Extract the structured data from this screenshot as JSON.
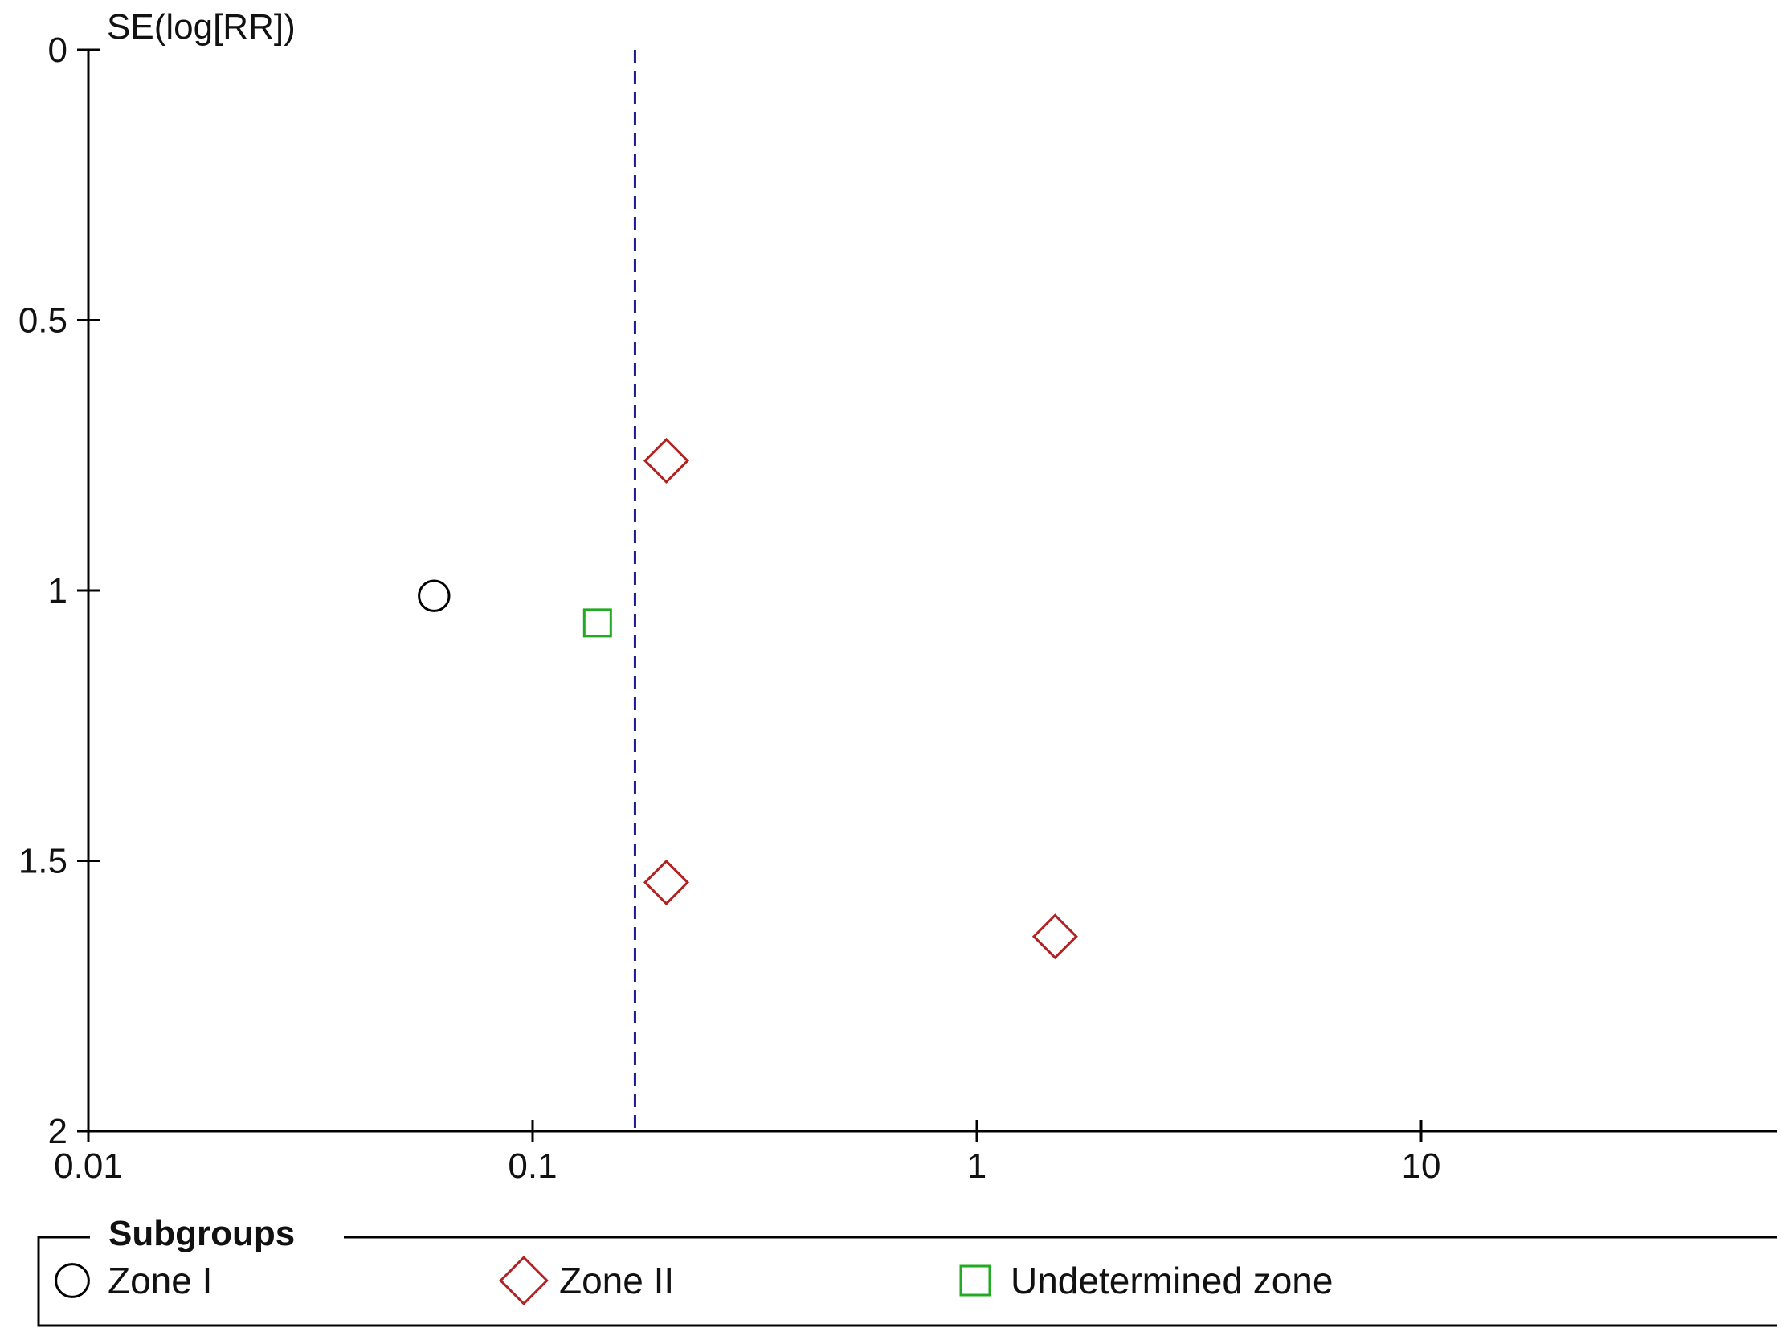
{
  "chart_data": {
    "type": "scatter",
    "title": "",
    "xlabel": "",
    "ylabel": "SE(log[RR])",
    "x_scale": "log",
    "xlim": [
      0.01,
      50
    ],
    "x_ticks": [
      0.01,
      0.1,
      1,
      10
    ],
    "x_tick_labels": [
      "0.01",
      "0.1",
      "1",
      "10"
    ],
    "ylim": [
      0,
      2
    ],
    "y_inverted": true,
    "y_ticks": [
      0,
      0.5,
      1,
      1.5,
      2
    ],
    "y_tick_labels": [
      "0",
      "0.5",
      "1",
      "1.5",
      "2"
    ],
    "reference_line_x": 0.17,
    "grid": false,
    "legend": {
      "title": "Subgroups",
      "placement": "bottom"
    },
    "series": [
      {
        "name": "Zone I",
        "marker": "circle",
        "color": "#000000",
        "points": [
          {
            "x": 0.06,
            "y": 1.01
          }
        ]
      },
      {
        "name": "Zone II",
        "marker": "diamond",
        "color": "#b22222",
        "points": [
          {
            "x": 0.2,
            "y": 0.76
          },
          {
            "x": 0.2,
            "y": 1.54
          },
          {
            "x": 1.5,
            "y": 1.64
          }
        ]
      },
      {
        "name": "Undetermined zone",
        "marker": "square",
        "color": "#22aa22",
        "points": [
          {
            "x": 0.14,
            "y": 1.06
          }
        ]
      }
    ]
  }
}
